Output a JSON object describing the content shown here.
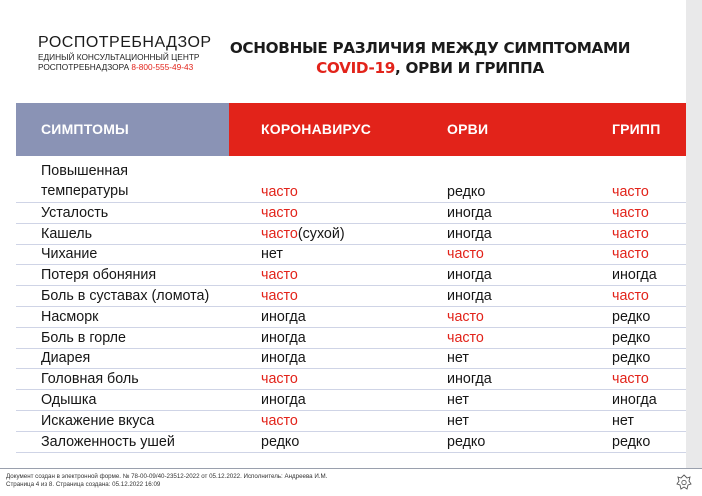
{
  "org": {
    "name": "РОСПОТРЕБНАДЗОР",
    "line1": "ЕДИНЫЙ КОНСУЛЬТАЦИОННЫЙ ЦЕНТР",
    "line2": "РОСПОТРЕБНАДЗОРА",
    "phone": "8-800-555-49-43"
  },
  "title": {
    "line1": "ОСНОВНЫЕ РАЗЛИЧИЯ МЕЖДУ СИМПТОМАМИ",
    "line2_red": "COVID-19",
    "line2_rest": ", ОРВИ И ГРИППА"
  },
  "table": {
    "headers": {
      "symptoms": "СИМПТОМЫ",
      "covid": "КОРОНАВИРУС",
      "orvi": "ОРВИ",
      "flu": "ГРИПП"
    },
    "rows": [
      {
        "symptom": "Повышенная",
        "symptom2": "температуры",
        "covid": "часто",
        "covid_red": true,
        "covid_extra": "",
        "orvi": "редко",
        "orvi_red": false,
        "flu": "часто",
        "flu_red": true
      },
      {
        "symptom": "Усталость",
        "covid": "часто",
        "covid_red": true,
        "covid_extra": "",
        "orvi": "иногда",
        "orvi_red": false,
        "flu": "часто",
        "flu_red": true
      },
      {
        "symptom": "Кашель",
        "covid": "часто",
        "covid_red": true,
        "covid_extra": "(сухой)",
        "orvi": "иногда",
        "orvi_red": false,
        "flu": "часто",
        "flu_red": true
      },
      {
        "symptom": "Чихание",
        "covid": "нет",
        "covid_red": false,
        "covid_extra": "",
        "orvi": "часто",
        "orvi_red": true,
        "flu": "часто",
        "flu_red": true
      },
      {
        "symptom": "Потеря обоняния",
        "covid": "часто",
        "covid_red": true,
        "covid_extra": "",
        "orvi": "иногда",
        "orvi_red": false,
        "flu": "иногда",
        "flu_red": false
      },
      {
        "symptom": "Боль в суставах (ломота)",
        "covid": "часто",
        "covid_red": true,
        "covid_extra": "",
        "orvi": "иногда",
        "orvi_red": false,
        "flu": "часто",
        "flu_red": true
      },
      {
        "symptom": "Насморк",
        "covid": "иногда",
        "covid_red": false,
        "covid_extra": "",
        "orvi": "часто",
        "orvi_red": true,
        "flu": "редко",
        "flu_red": false
      },
      {
        "symptom": "Боль в горле",
        "covid": "иногда",
        "covid_red": false,
        "covid_extra": "",
        "orvi": "часто",
        "orvi_red": true,
        "flu": "редко",
        "flu_red": false
      },
      {
        "symptom": "Диарея",
        "covid": "иногда",
        "covid_red": false,
        "covid_extra": "",
        "orvi": "нет",
        "orvi_red": false,
        "flu": "редко",
        "flu_red": false
      },
      {
        "symptom": "Головная боль",
        "covid": "часто",
        "covid_red": true,
        "covid_extra": "",
        "orvi": "иногда",
        "orvi_red": false,
        "flu": "часто",
        "flu_red": true
      },
      {
        "symptom": "Одышка",
        "covid": "иногда",
        "covid_red": false,
        "covid_extra": "",
        "orvi": "нет",
        "orvi_red": false,
        "flu": "иногда",
        "flu_red": false
      },
      {
        "symptom": "Искажение вкуса",
        "covid": "часто",
        "covid_red": true,
        "covid_extra": "",
        "orvi": "нет",
        "orvi_red": false,
        "flu": "нет",
        "flu_red": false
      },
      {
        "symptom": "Заложенность ушей",
        "covid": "редко",
        "covid_red": false,
        "covid_extra": "",
        "orvi": "редко",
        "orvi_red": false,
        "flu": "редко",
        "flu_red": false
      }
    ]
  },
  "footer": {
    "line1": "Документ создан в электронной форме. № 78-00-09/40-23512-2022 от 05.12.2022. Исполнитель: Андреева И.М.",
    "line2": "Страница 4 из 8. Страница создана: 05.12.2022 16:09"
  },
  "colors": {
    "red": "#e2231a",
    "header_gray": "#8a93b5",
    "row_line": "#cfd4e6",
    "text": "#161616"
  },
  "icons": {
    "emblem": "coat-of-arms-icon"
  }
}
